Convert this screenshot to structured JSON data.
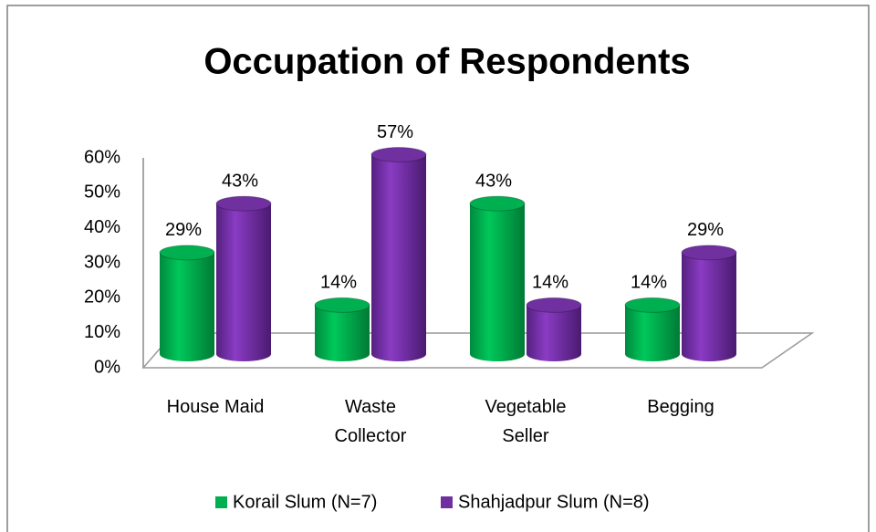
{
  "chart_data": {
    "type": "bar",
    "title": "Occupation of Respondents",
    "categories": [
      "House Maid",
      "Waste Collector",
      "Vegetable Seller",
      "Begging"
    ],
    "series": [
      {
        "name": "Korail Slum (N=7)",
        "color": "#00b050",
        "values": [
          29,
          14,
          43,
          14
        ],
        "value_labels": [
          "29%",
          "14%",
          "43%",
          "14%"
        ]
      },
      {
        "name": "Shahjadpur Slum (N=8)",
        "color": "#7030a0",
        "values": [
          43,
          57,
          14,
          29
        ],
        "value_labels": [
          "43%",
          "57%",
          "14%",
          "29%"
        ]
      }
    ],
    "ylim": [
      0,
      60
    ],
    "yticks": [
      {
        "value": 0,
        "label": "0%"
      },
      {
        "value": 10,
        "label": "10%"
      },
      {
        "value": 20,
        "label": "20%"
      },
      {
        "value": 30,
        "label": "30%"
      },
      {
        "value": 40,
        "label": "40%"
      },
      {
        "value": 50,
        "label": "50%"
      },
      {
        "value": 60,
        "label": "60%"
      }
    ],
    "grid": false,
    "legend": "bottom"
  }
}
